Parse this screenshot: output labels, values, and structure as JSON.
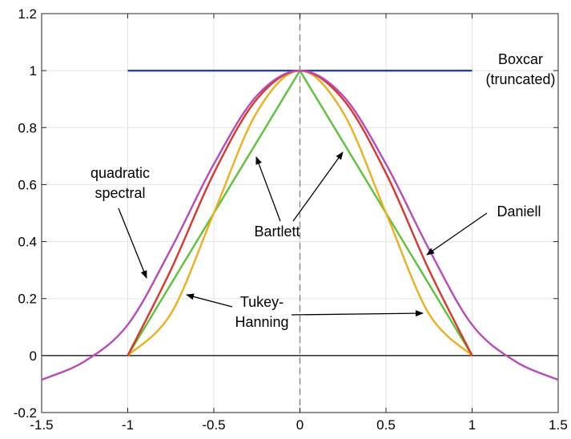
{
  "chart_data": {
    "type": "line",
    "title": "",
    "xlabel": "",
    "ylabel": "",
    "xlim": [
      -1.5,
      1.5
    ],
    "ylim": [
      -0.2,
      1.2
    ],
    "xticks": [
      "-1.5",
      "-1",
      "-0.5",
      "0",
      "0.5",
      "1",
      "1.5"
    ],
    "yticks": [
      "-0.2",
      "0",
      "0.2",
      "0.4",
      "0.6",
      "0.8",
      "1",
      "1.2"
    ],
    "grid": true,
    "legend": "none",
    "series": [
      {
        "name": "Boxcar (truncated)",
        "color": "#2a3fa8",
        "x": [
          -1,
          1
        ],
        "y": [
          1,
          1
        ]
      },
      {
        "name": "Bartlett",
        "color": "#5cc23a",
        "x": [
          -1,
          0,
          1
        ],
        "y": [
          0,
          1,
          0
        ]
      },
      {
        "name": "Tukey-Hanning",
        "color": "#edae1f",
        "x": [
          -1,
          -0.75,
          -0.5,
          -0.25,
          0,
          0.25,
          0.5,
          0.75,
          1
        ],
        "y": [
          0,
          0.146,
          0.5,
          0.854,
          1,
          0.854,
          0.5,
          0.146,
          0
        ]
      },
      {
        "name": "Daniell",
        "color": "#d8362b",
        "x": [
          -1,
          -0.75,
          -0.5,
          -0.25,
          0,
          0.25,
          0.5,
          0.75,
          1
        ],
        "y": [
          0,
          0.3,
          0.64,
          0.9,
          1,
          0.9,
          0.64,
          0.3,
          0
        ]
      },
      {
        "name": "quadratic spectral",
        "color": "#b84ab8",
        "x": [
          -1.5,
          -1.25,
          -1,
          -0.75,
          -0.5,
          -0.25,
          0,
          0.25,
          0.5,
          0.75,
          1,
          1.25,
          1.5
        ],
        "y": [
          -0.085,
          -0.02,
          0.108,
          0.373,
          0.672,
          0.912,
          1,
          0.912,
          0.672,
          0.373,
          0.108,
          -0.02,
          -0.085
        ]
      }
    ],
    "annotations": [
      {
        "lines": [
          "Boxcar",
          "(truncated)"
        ]
      },
      {
        "lines": [
          "quadratic",
          "spectral"
        ]
      },
      {
        "lines": [
          "Bartlett"
        ]
      },
      {
        "lines": [
          "Daniell"
        ]
      },
      {
        "lines": [
          "Tukey-",
          "Hanning"
        ]
      }
    ]
  }
}
